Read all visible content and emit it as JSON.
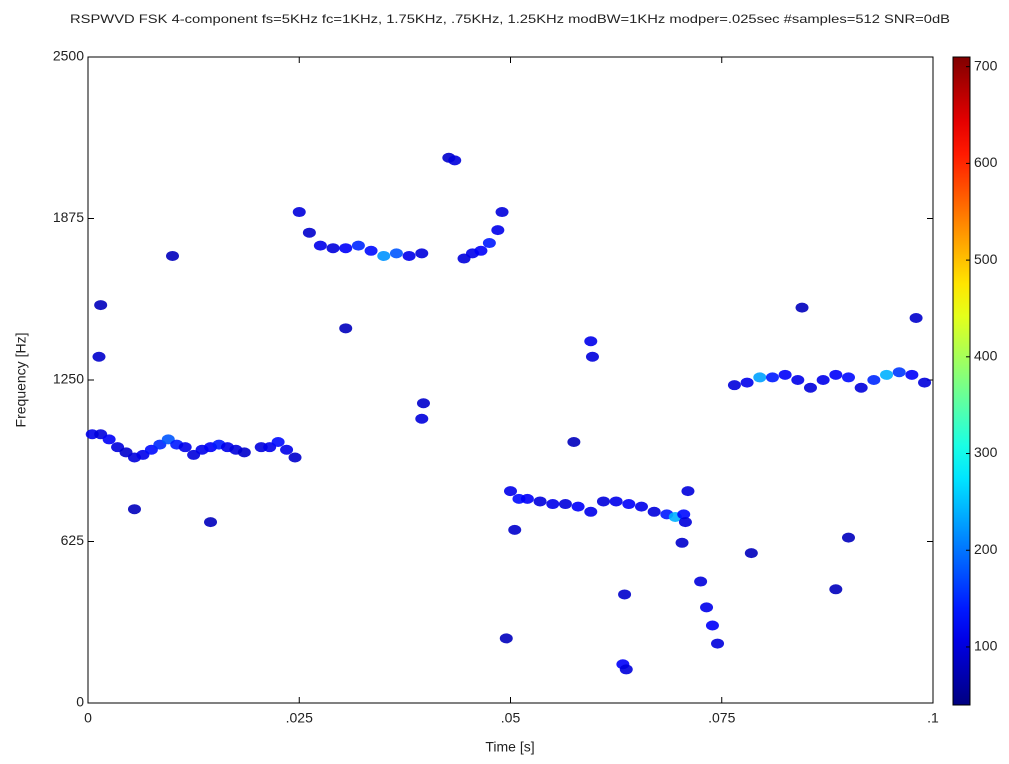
{
  "chart_data": {
    "type": "scatter",
    "title": "RSPWVD FSK 4-component fs=5KHz fc=1KHz, 1.75KHz, .75KHz, 1.25KHz modBW=1KHz modper=.025sec #samples=512 SNR=0dB",
    "xlabel": "Time [s]",
    "ylabel": "Frequency [Hz]",
    "xlim": [
      0,
      0.1
    ],
    "xticks": [
      0,
      {
        "value": 0.025,
        "label": ".025"
      },
      {
        "value": 0.05,
        "label": ".05"
      },
      {
        "value": 0.075,
        "label": ".075"
      },
      {
        "value": 0.1,
        "label": ".1"
      }
    ],
    "ylim": [
      0,
      2500
    ],
    "yticks": [
      0,
      625,
      1250,
      1875,
      2500
    ],
    "colormap": "jet",
    "clim": [
      40,
      710
    ],
    "cticks": [
      100,
      200,
      300,
      400,
      500,
      600,
      700
    ],
    "series": [
      {
        "x": [
          0.0005,
          0.0015,
          0.0025,
          0.0035,
          0.0045,
          0.0055,
          0.0065,
          0.0075,
          0.0085,
          0.0095,
          0.0105,
          0.0115,
          0.0125,
          0.0135,
          0.0145,
          0.0155,
          0.0165,
          0.0175,
          0.0185,
          0.0205,
          0.0215,
          0.0225,
          0.0235,
          0.0245
        ],
        "values": [
          1040,
          1040,
          1020,
          990,
          970,
          950,
          960,
          980,
          1000,
          1020,
          1000,
          990,
          960,
          980,
          990,
          1000,
          990,
          980,
          970,
          990,
          990,
          1010,
          980,
          950
        ],
        "intensity": [
          110,
          100,
          120,
          100,
          90,
          100,
          110,
          130,
          150,
          180,
          140,
          110,
          100,
          110,
          120,
          140,
          110,
          100,
          90,
          100,
          110,
          130,
          110,
          90
        ]
      },
      {
        "x": [
          0.025,
          0.0262,
          0.0275,
          0.029,
          0.0305,
          0.032,
          0.0335,
          0.035,
          0.0365,
          0.038,
          0.0395,
          0.0445,
          0.0455,
          0.0465,
          0.0475,
          0.0485,
          0.049
        ],
        "values": [
          1900,
          1820,
          1770,
          1760,
          1760,
          1770,
          1750,
          1730,
          1740,
          1730,
          1740,
          1720,
          1740,
          1750,
          1780,
          1830,
          1900
        ],
        "intensity": [
          100,
          90,
          110,
          100,
          120,
          150,
          130,
          220,
          180,
          110,
          100,
          100,
          110,
          120,
          140,
          110,
          100
        ]
      },
      {
        "x": [
          0.05,
          0.051,
          0.052,
          0.0535,
          0.055,
          0.0565,
          0.058,
          0.0595,
          0.061,
          0.0625,
          0.064,
          0.0655,
          0.067,
          0.0685,
          0.0695,
          0.0705,
          0.071
        ],
        "values": [
          820,
          790,
          790,
          780,
          770,
          770,
          760,
          740,
          780,
          780,
          770,
          760,
          740,
          730,
          720,
          730,
          820
        ],
        "intensity": [
          110,
          130,
          120,
          100,
          110,
          100,
          120,
          110,
          100,
          110,
          120,
          110,
          100,
          140,
          240,
          130,
          100
        ]
      },
      {
        "x": [
          0.0765,
          0.078,
          0.0795,
          0.081,
          0.0825,
          0.084,
          0.0855,
          0.087,
          0.0885,
          0.09,
          0.0915,
          0.093,
          0.0945,
          0.096,
          0.0975,
          0.099
        ],
        "values": [
          1230,
          1240,
          1260,
          1260,
          1270,
          1250,
          1220,
          1250,
          1270,
          1260,
          1220,
          1250,
          1270,
          1280,
          1270,
          1240
        ],
        "intensity": [
          100,
          110,
          230,
          140,
          120,
          110,
          100,
          110,
          120,
          130,
          100,
          150,
          240,
          160,
          120,
          100
        ]
      },
      {
        "x": [
          0.0725,
          0.0732,
          0.0739,
          0.0745,
          0.0703,
          0.0707,
          0.0633,
          0.0637,
          0.0595,
          0.0597,
          0.0427,
          0.0434,
          0.0395,
          0.0397,
          0.0015,
          0.0013,
          0.0495,
          0.0505,
          0.0635,
          0.01,
          0.0055,
          0.0145,
          0.0885,
          0.09,
          0.098,
          0.0575,
          0.0305,
          0.0845,
          0.0785
        ],
        "values": [
          470,
          370,
          300,
          230,
          620,
          700,
          150,
          130,
          1400,
          1340,
          2110,
          2100,
          1100,
          1160,
          1540,
          1340,
          250,
          670,
          420,
          1730,
          750,
          700,
          440,
          640,
          1490,
          1010,
          1450,
          1530,
          580
        ],
        "intensity": [
          100,
          110,
          120,
          100,
          90,
          100,
          120,
          100,
          110,
          100,
          90,
          100,
          100,
          90,
          80,
          90,
          80,
          90,
          90,
          80,
          80,
          80,
          80,
          80,
          90,
          80,
          80,
          80,
          80
        ]
      }
    ]
  }
}
